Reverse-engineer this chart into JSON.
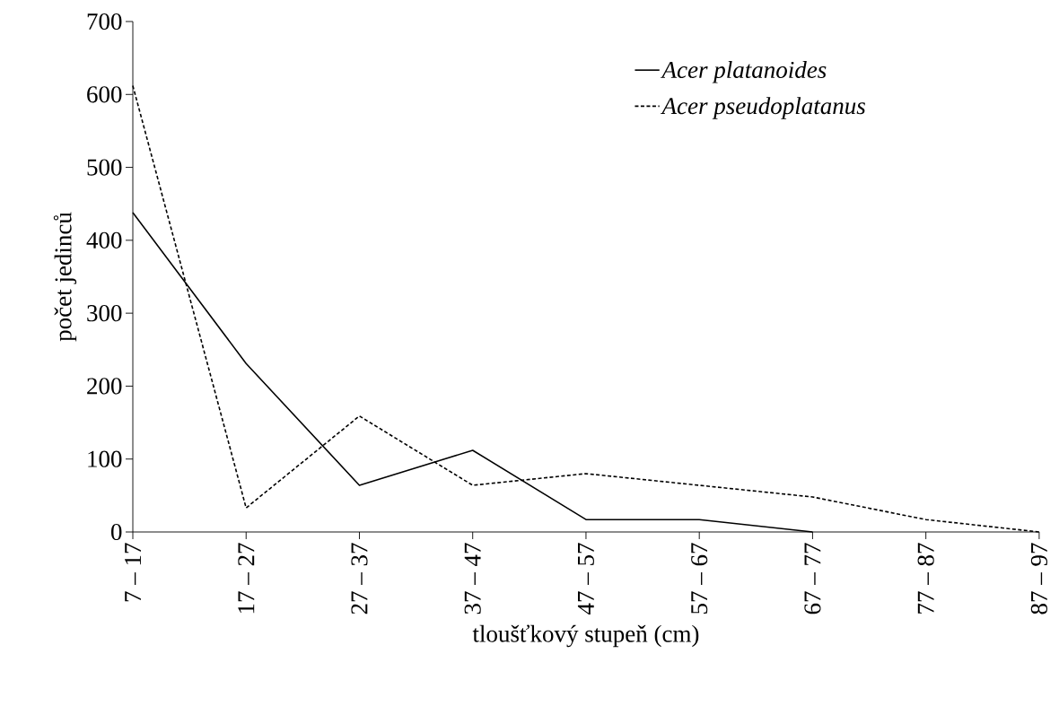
{
  "chart_data": {
    "type": "line",
    "xlabel": "tloušťkový stupeň (cm)",
    "ylabel": "počet jedinců",
    "categories": [
      "7 – 17",
      "17 – 27",
      "27 – 37",
      "37 – 47",
      "47 – 57",
      "57 – 67",
      "67 – 77",
      "77 – 87",
      "87 – 97"
    ],
    "series": [
      {
        "name": "Acer platanoides",
        "color": "#000000",
        "line_style": "solid",
        "values": [
          438,
          231,
          64,
          112,
          17,
          17,
          0,
          null,
          null
        ]
      },
      {
        "name": "Acer pseudoplatanus",
        "color": "#000000",
        "line_style": "dashed",
        "values": [
          612,
          33,
          159,
          64,
          80,
          64,
          48,
          17,
          0
        ]
      }
    ],
    "ylim": [
      0,
      700
    ],
    "yticks": [
      0,
      100,
      200,
      300,
      400,
      500,
      600,
      700
    ],
    "grid": false,
    "legend": "top right",
    "marker": "none"
  }
}
